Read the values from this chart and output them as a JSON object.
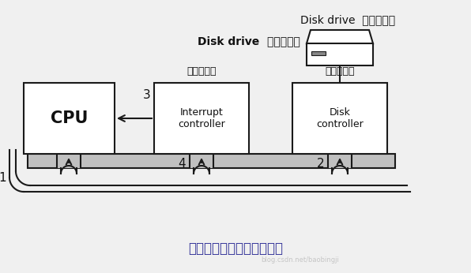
{
  "bg_color": "#f0f0f0",
  "title_bottom": "启动设备并发出中断的过程",
  "disk_drive_label_en": "Disk drive",
  "disk_drive_label_cn": "磁盘驱动器",
  "interrupt_ctrl_label_cn": "中断控制器",
  "disk_ctrl_label_cn": "磁盘控制器",
  "cpu_label": "CPU",
  "interrupt_label": "Interrupt\ncontroller",
  "disk_ctrl_label": "Disk\ncontroller",
  "number_1": "1",
  "number_2": "2",
  "number_3": "3",
  "number_4": "4",
  "watermark": "blog.csdn.net/baobingji",
  "lw": 1.5,
  "box_ec": "#1a1a1a",
  "gray_bus": "#c0c0c0",
  "gray_dark": "#888888"
}
